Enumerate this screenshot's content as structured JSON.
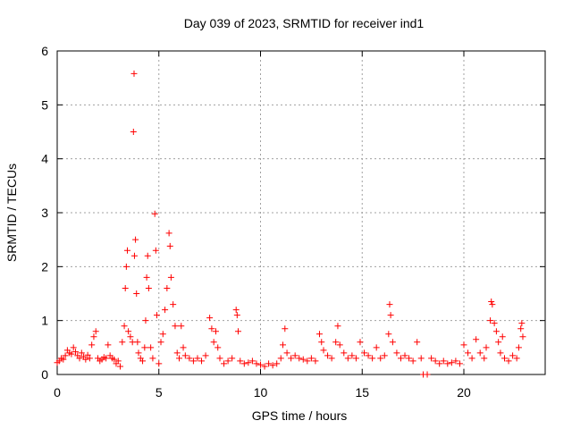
{
  "chart_data": {
    "type": "scatter",
    "title": "Day 039 of 2023, SRMTID for receiver ind1",
    "xlabel": "GPS time / hours",
    "ylabel": "SRMTID / TECUs",
    "xlim": [
      0,
      24
    ],
    "ylim": [
      0,
      6
    ],
    "xticks": [
      0,
      5,
      10,
      15,
      20
    ],
    "yticks": [
      0,
      1,
      2,
      3,
      4,
      5,
      6
    ],
    "grid": true,
    "marker": "+",
    "series": [
      {
        "name": "SRMTID",
        "color": "#ff0000",
        "points": [
          [
            0.0,
            0.22
          ],
          [
            0.1,
            0.25
          ],
          [
            0.2,
            0.3
          ],
          [
            0.3,
            0.28
          ],
          [
            0.4,
            0.35
          ],
          [
            0.5,
            0.45
          ],
          [
            0.6,
            0.4
          ],
          [
            0.7,
            0.38
          ],
          [
            0.8,
            0.5
          ],
          [
            0.9,
            0.42
          ],
          [
            1.0,
            0.35
          ],
          [
            1.1,
            0.3
          ],
          [
            1.2,
            0.4
          ],
          [
            1.3,
            0.33
          ],
          [
            1.4,
            0.28
          ],
          [
            1.5,
            0.36
          ],
          [
            1.6,
            0.3
          ],
          [
            1.7,
            0.55
          ],
          [
            1.8,
            0.7
          ],
          [
            1.9,
            0.8
          ],
          [
            2.0,
            0.3
          ],
          [
            2.1,
            0.25
          ],
          [
            2.2,
            0.28
          ],
          [
            2.3,
            0.32
          ],
          [
            2.4,
            0.3
          ],
          [
            2.5,
            0.55
          ],
          [
            2.6,
            0.35
          ],
          [
            2.7,
            0.3
          ],
          [
            2.8,
            0.28
          ],
          [
            2.9,
            0.2
          ],
          [
            3.0,
            0.25
          ],
          [
            3.1,
            0.15
          ],
          [
            3.2,
            0.6
          ],
          [
            3.3,
            0.9
          ],
          [
            3.35,
            1.6
          ],
          [
            3.4,
            2.0
          ],
          [
            3.45,
            2.3
          ],
          [
            3.5,
            0.8
          ],
          [
            3.6,
            0.7
          ],
          [
            3.7,
            0.6
          ],
          [
            3.75,
            4.5
          ],
          [
            3.78,
            5.58
          ],
          [
            3.8,
            2.2
          ],
          [
            3.85,
            2.5
          ],
          [
            3.9,
            1.5
          ],
          [
            3.95,
            0.6
          ],
          [
            4.0,
            0.4
          ],
          [
            4.1,
            0.3
          ],
          [
            4.2,
            0.25
          ],
          [
            4.3,
            0.5
          ],
          [
            4.35,
            1.0
          ],
          [
            4.4,
            1.8
          ],
          [
            4.45,
            2.2
          ],
          [
            4.5,
            1.6
          ],
          [
            4.6,
            0.5
          ],
          [
            4.7,
            0.3
          ],
          [
            4.8,
            2.98
          ],
          [
            4.85,
            2.3
          ],
          [
            4.9,
            1.1
          ],
          [
            5.0,
            0.2
          ],
          [
            5.1,
            0.6
          ],
          [
            5.2,
            0.75
          ],
          [
            5.3,
            1.2
          ],
          [
            5.4,
            1.6
          ],
          [
            5.5,
            2.62
          ],
          [
            5.55,
            2.38
          ],
          [
            5.6,
            1.8
          ],
          [
            5.7,
            1.3
          ],
          [
            5.8,
            0.9
          ],
          [
            5.9,
            0.4
          ],
          [
            6.0,
            0.3
          ],
          [
            6.1,
            0.9
          ],
          [
            6.2,
            0.5
          ],
          [
            6.3,
            0.35
          ],
          [
            6.5,
            0.3
          ],
          [
            6.7,
            0.25
          ],
          [
            6.9,
            0.3
          ],
          [
            7.1,
            0.25
          ],
          [
            7.3,
            0.35
          ],
          [
            7.5,
            1.05
          ],
          [
            7.6,
            0.85
          ],
          [
            7.7,
            0.6
          ],
          [
            7.8,
            0.8
          ],
          [
            7.9,
            0.5
          ],
          [
            8.0,
            0.3
          ],
          [
            8.2,
            0.2
          ],
          [
            8.4,
            0.25
          ],
          [
            8.6,
            0.3
          ],
          [
            8.8,
            1.2
          ],
          [
            8.85,
            1.1
          ],
          [
            8.9,
            0.8
          ],
          [
            9.0,
            0.25
          ],
          [
            9.2,
            0.2
          ],
          [
            9.4,
            0.22
          ],
          [
            9.6,
            0.25
          ],
          [
            9.8,
            0.2
          ],
          [
            10.0,
            0.18
          ],
          [
            10.2,
            0.15
          ],
          [
            10.4,
            0.2
          ],
          [
            10.6,
            0.17
          ],
          [
            10.8,
            0.2
          ],
          [
            11.0,
            0.3
          ],
          [
            11.1,
            0.55
          ],
          [
            11.2,
            0.85
          ],
          [
            11.3,
            0.4
          ],
          [
            11.5,
            0.3
          ],
          [
            11.7,
            0.35
          ],
          [
            11.9,
            0.3
          ],
          [
            12.1,
            0.28
          ],
          [
            12.3,
            0.25
          ],
          [
            12.5,
            0.3
          ],
          [
            12.7,
            0.25
          ],
          [
            12.9,
            0.75
          ],
          [
            13.0,
            0.6
          ],
          [
            13.1,
            0.45
          ],
          [
            13.3,
            0.35
          ],
          [
            13.5,
            0.3
          ],
          [
            13.7,
            0.6
          ],
          [
            13.8,
            0.9
          ],
          [
            13.9,
            0.55
          ],
          [
            14.1,
            0.4
          ],
          [
            14.3,
            0.3
          ],
          [
            14.5,
            0.35
          ],
          [
            14.7,
            0.3
          ],
          [
            14.9,
            0.6
          ],
          [
            15.1,
            0.4
          ],
          [
            15.3,
            0.35
          ],
          [
            15.5,
            0.3
          ],
          [
            15.7,
            0.5
          ],
          [
            15.9,
            0.3
          ],
          [
            16.1,
            0.35
          ],
          [
            16.3,
            0.75
          ],
          [
            16.35,
            1.3
          ],
          [
            16.4,
            1.1
          ],
          [
            16.5,
            0.6
          ],
          [
            16.7,
            0.4
          ],
          [
            16.9,
            0.3
          ],
          [
            17.1,
            0.35
          ],
          [
            17.3,
            0.3
          ],
          [
            17.5,
            0.25
          ],
          [
            17.7,
            0.6
          ],
          [
            17.9,
            0.3
          ],
          [
            18.0,
            0.0
          ],
          [
            18.2,
            0.0
          ],
          [
            18.4,
            0.3
          ],
          [
            18.6,
            0.25
          ],
          [
            18.8,
            0.2
          ],
          [
            19.0,
            0.25
          ],
          [
            19.2,
            0.2
          ],
          [
            19.4,
            0.22
          ],
          [
            19.6,
            0.25
          ],
          [
            19.8,
            0.2
          ],
          [
            20.0,
            0.55
          ],
          [
            20.2,
            0.4
          ],
          [
            20.4,
            0.3
          ],
          [
            20.6,
            0.65
          ],
          [
            20.8,
            0.4
          ],
          [
            21.0,
            0.3
          ],
          [
            21.1,
            0.5
          ],
          [
            21.3,
            1.0
          ],
          [
            21.35,
            1.35
          ],
          [
            21.4,
            1.3
          ],
          [
            21.5,
            0.95
          ],
          [
            21.6,
            0.8
          ],
          [
            21.7,
            0.6
          ],
          [
            21.8,
            0.4
          ],
          [
            21.9,
            0.7
          ],
          [
            22.0,
            0.3
          ],
          [
            22.2,
            0.25
          ],
          [
            22.4,
            0.35
          ],
          [
            22.6,
            0.3
          ],
          [
            22.7,
            0.5
          ],
          [
            22.8,
            0.85
          ],
          [
            22.85,
            0.95
          ],
          [
            22.9,
            0.7
          ]
        ]
      }
    ]
  }
}
